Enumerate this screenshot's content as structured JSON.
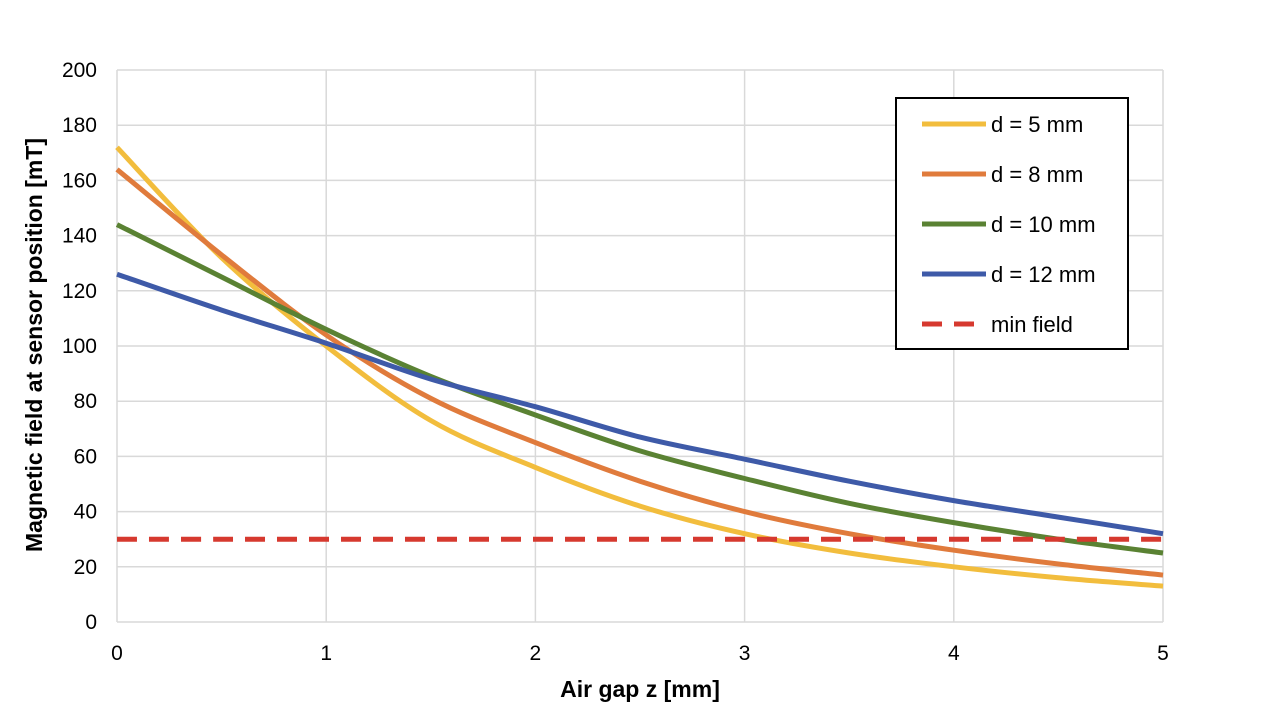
{
  "chart_data": {
    "type": "line",
    "xlabel": "Air gap z [mm]",
    "ylabel": "Magnetic field at sensor position [mT]",
    "xlim": [
      0,
      5
    ],
    "ylim": [
      0,
      200
    ],
    "xticks": [
      "0",
      "1",
      "2",
      "3",
      "4",
      "5"
    ],
    "yticks": [
      "0",
      "20",
      "40",
      "60",
      "80",
      "100",
      "120",
      "140",
      "160",
      "180",
      "200"
    ],
    "grid": true,
    "legend_position": "top-right",
    "x": [
      0,
      0.5,
      1,
      1.5,
      2,
      2.5,
      3,
      3.5,
      4,
      4.5,
      5
    ],
    "series": [
      {
        "name": "d = 5 mm",
        "color": "#f2bd3d",
        "style": "solid",
        "values": [
          172,
          132,
          100,
          73,
          56,
          42,
          32,
          25,
          20,
          16,
          13
        ]
      },
      {
        "name": "d = 8 mm",
        "color": "#e07b3c",
        "style": "solid",
        "values": [
          164,
          133,
          104,
          81,
          65,
          51,
          40,
          32,
          26,
          21,
          17
        ]
      },
      {
        "name": "d = 10 mm",
        "color": "#5a8233",
        "style": "solid",
        "values": [
          144,
          125,
          106,
          89,
          75,
          62,
          52,
          43,
          36,
          30,
          25
        ]
      },
      {
        "name": "d = 12 mm",
        "color": "#3e5aa8",
        "style": "solid",
        "values": [
          126,
          113,
          101,
          88,
          78,
          67,
          59,
          51,
          44,
          38,
          32
        ]
      },
      {
        "name": "min field",
        "color": "#d6392f",
        "style": "dashed",
        "values": [
          30,
          30,
          30,
          30,
          30,
          30,
          30,
          30,
          30,
          30,
          30
        ]
      }
    ]
  }
}
